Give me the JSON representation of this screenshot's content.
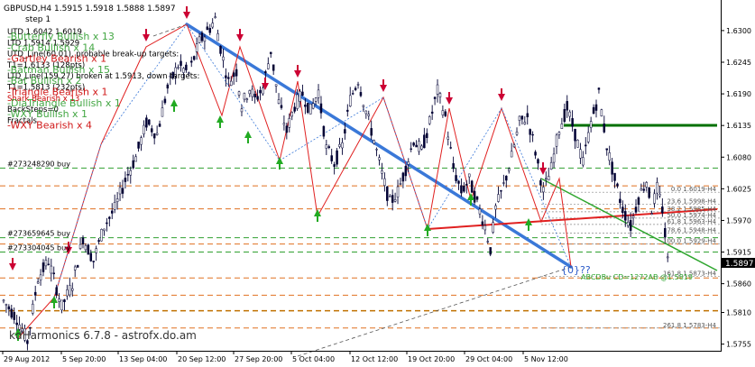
{
  "header": {
    "symbol_line": "GBPUSD,H4  1.5915 1.5918 1.5888 1.5897",
    "step_line": "step 1"
  },
  "overlay_lines": [
    {
      "text": "UTD 1.6042  1.6019",
      "color": "#000000"
    },
    {
      "text": "LTD 1.5914  1.5929",
      "color": "#000000"
    },
    {
      "text": "UTD_Line(60.01), probable break-up targets:",
      "color": "#000000"
    },
    {
      "text": "T1=1.6133 (128pts)",
      "color": "#000000"
    },
    {
      "text": "LTD_Line(159.27) broken at 1.5913, down targets:",
      "color": "#000000"
    },
    {
      "text": "T1=1.5813 (232pts)",
      "color": "#000000"
    },
    {
      "text": "Shark Bearish x 13",
      "color": "#cc0000"
    },
    {
      "text": "BackSteps=0",
      "color": "#000000"
    },
    {
      "text": "Fractals",
      "color": "#000000"
    }
  ],
  "pattern_lines": [
    {
      "text": "-Butterfly Bullish x 13",
      "color": "#2e9d2e"
    },
    {
      "text": "-Crab Bullish x 14",
      "color": "#2e9d2e"
    },
    {
      "text": "-Gartley Bearish x 1",
      "color": "#cc0000"
    },
    {
      "text": "-Batman Bullish x 15",
      "color": "#2e9d2e"
    },
    {
      "text": "-Bat Bullish x 2",
      "color": "#2e9d2e"
    },
    {
      "text": "-Triangle Bearish x 1",
      "color": "#cc0000"
    },
    {
      "text": "-DiaTriangle Bullish x 1",
      "color": "#2e9d2e"
    },
    {
      "text": "-WXY Bullish x 1",
      "color": "#2e9d2e"
    },
    {
      "text": "-WXY Bearish x 4",
      "color": "#cc0000"
    }
  ],
  "order_labels": [
    {
      "text": "#273248290 buy",
      "price": 1.6061
    },
    {
      "text": "#273659645 buy",
      "price": 1.594
    },
    {
      "text": "#273304045 buy",
      "price": 1.5915
    }
  ],
  "fib_labels": [
    {
      "text": "0.0  1.6019-H4",
      "price": 1.6019
    },
    {
      "text": "23.6  1.5998-H4",
      "price": 1.5998
    },
    {
      "text": "38.2  1.5985-H4",
      "price": 1.5985
    },
    {
      "text": "50.0  1.5974-H4",
      "price": 1.5974
    },
    {
      "text": "61.8  1.5963-H4",
      "price": 1.5963
    },
    {
      "text": "78.6  1.5948-H4",
      "price": 1.5948
    },
    {
      "text": "100.0  1.5929-H4",
      "price": 1.5929
    },
    {
      "text": "161.8  1.5873-H4",
      "price": 1.5873
    },
    {
      "text": "261.8  1.5783-H4",
      "price": 1.5783
    }
  ],
  "abcd_label": "ABCDBu CD=1272AB  @1.5819",
  "pattern_mark": "{0}??",
  "watermark": "kdHarmonics 6.7.8 - astrofx.do.am",
  "current_price": "1.5897",
  "colors": {
    "background": "#ffffff",
    "candle": "#000033",
    "blue_trend": "#3a78d8",
    "red_line": "#e02020",
    "green_line": "#2ea62e",
    "dark_green_level": "#007000",
    "orange_dash": "#e07020",
    "green_dash": "#30a030",
    "price_tag_bg": "#000000",
    "fractal_up": "#cc0033",
    "fractal_down": "#22aa22"
  },
  "chart_data": {
    "type": "candlestick",
    "ylim": [
      1.5745,
      1.635
    ],
    "y_ticks": [
      "1.6300",
      "1.6245",
      "1.6190",
      "1.6135",
      "1.6080",
      "1.6025",
      "1.5970",
      "1.5915",
      "1.5860",
      "1.5810",
      "1.5755"
    ],
    "y_tick_values": [
      1.63,
      1.6245,
      1.619,
      1.6135,
      1.608,
      1.6025,
      1.597,
      1.5915,
      1.586,
      1.581,
      1.5755
    ],
    "x_ticks": [
      "29 Aug 2012",
      "5 Sep 20:00",
      "13 Sep 04:00",
      "20 Sep 12:00",
      "27 Sep 20:00",
      "5 Oct 04:00",
      "12 Oct 12:00",
      "19 Oct 20:00",
      "29 Oct 04:00",
      "5 Nov 12:00"
    ],
    "price_path": [
      [
        0,
        1.583
      ],
      [
        5,
        1.58
      ],
      [
        9,
        1.576
      ],
      [
        13,
        1.587
      ],
      [
        17,
        1.59
      ],
      [
        22,
        1.582
      ],
      [
        26,
        1.586
      ],
      [
        30,
        1.594
      ],
      [
        34,
        1.59
      ],
      [
        38,
        1.596
      ],
      [
        42,
        1.599
      ],
      [
        46,
        1.604
      ],
      [
        50,
        1.608
      ],
      [
        54,
        1.614
      ],
      [
        58,
        1.612
      ],
      [
        62,
        1.62
      ],
      [
        66,
        1.624
      ],
      [
        70,
        1.6225
      ],
      [
        74,
        1.628
      ],
      [
        78,
        1.6305
      ],
      [
        80,
        1.632
      ],
      [
        82,
        1.627
      ],
      [
        85,
        1.621
      ],
      [
        88,
        1.623
      ],
      [
        90,
        1.617
      ],
      [
        93,
        1.62
      ],
      [
        95,
        1.618
      ],
      [
        98,
        1.62
      ],
      [
        101,
        1.6265
      ],
      [
        104,
        1.6175
      ],
      [
        107,
        1.6125
      ],
      [
        110,
        1.617
      ],
      [
        113,
        1.619
      ],
      [
        116,
        1.616
      ],
      [
        119,
        1.6195
      ],
      [
        122,
        1.6095
      ],
      [
        125,
        1.607
      ],
      [
        128,
        1.61
      ],
      [
        131,
        1.618
      ],
      [
        134,
        1.6215
      ],
      [
        137,
        1.616
      ],
      [
        140,
        1.611
      ],
      [
        143,
        1.605
      ],
      [
        146,
        1.6
      ],
      [
        149,
        1.602
      ],
      [
        152,
        1.606
      ],
      [
        155,
        1.611
      ],
      [
        158,
        1.609
      ],
      [
        161,
        1.614
      ],
      [
        164,
        1.6195
      ],
      [
        167,
        1.615
      ],
      [
        170,
        1.606
      ],
      [
        173,
        1.602
      ],
      [
        176,
        1.604
      ],
      [
        179,
        1.6
      ],
      [
        182,
        1.596
      ],
      [
        184,
        1.592
      ],
      [
        186,
        1.599
      ],
      [
        189,
        1.603
      ],
      [
        192,
        1.608
      ],
      [
        195,
        1.614
      ],
      [
        198,
        1.615
      ],
      [
        201,
        1.609
      ],
      [
        204,
        1.602
      ],
      [
        207,
        1.606
      ],
      [
        210,
        1.613
      ],
      [
        213,
        1.6165
      ],
      [
        216,
        1.612
      ],
      [
        219,
        1.607
      ],
      [
        222,
        1.614
      ],
      [
        225,
        1.619
      ],
      [
        228,
        1.61
      ],
      [
        231,
        1.604
      ],
      [
        234,
        1.599
      ],
      [
        237,
        1.596
      ],
      [
        240,
        1.601
      ],
      [
        243,
        1.604
      ],
      [
        245,
        1.599
      ],
      [
        247,
        1.6025
      ],
      [
        249,
        1.599
      ],
      [
        251,
        1.59
      ]
    ],
    "bar_count": 255
  }
}
